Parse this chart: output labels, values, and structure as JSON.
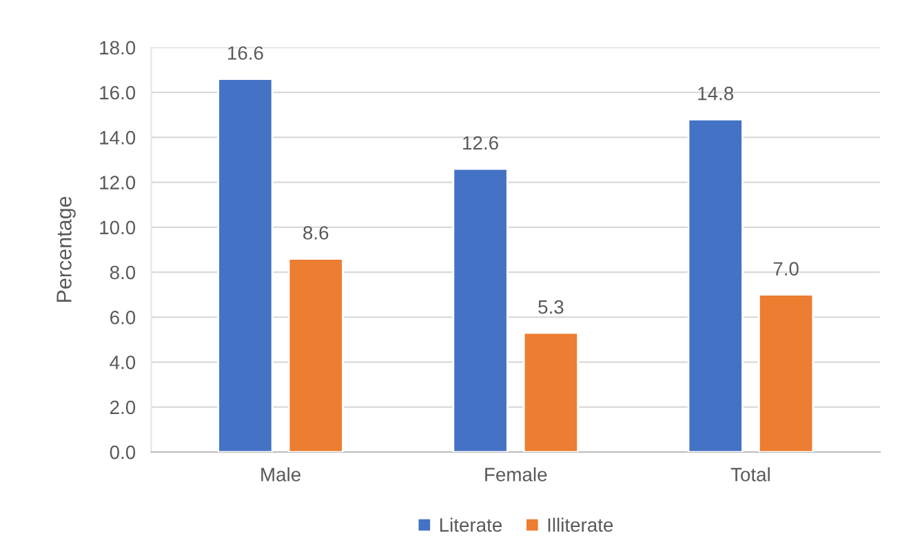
{
  "chart_data": {
    "type": "bar",
    "ylabel": "Percentage",
    "categories": [
      "Male",
      "Female",
      "Total"
    ],
    "series": [
      {
        "name": "Literate",
        "color": "#4472c4",
        "values": [
          16.6,
          12.6,
          14.8
        ],
        "value_labels": [
          "16.6",
          "12.6",
          "14.8"
        ]
      },
      {
        "name": "Illiterate",
        "color": "#ed7d31",
        "values": [
          8.6,
          5.3,
          7.0
        ],
        "value_labels": [
          "8.6",
          "5.3",
          "7.0"
        ]
      }
    ],
    "ylim": [
      0,
      18
    ],
    "yticks": [
      {
        "value": 0,
        "label": "0.0"
      },
      {
        "value": 2,
        "label": "2.0"
      },
      {
        "value": 4,
        "label": "4.0"
      },
      {
        "value": 6,
        "label": "6.0"
      },
      {
        "value": 8,
        "label": "8.0"
      },
      {
        "value": 10,
        "label": "10.0"
      },
      {
        "value": 12,
        "label": "12.0"
      },
      {
        "value": 14,
        "label": "14.0"
      },
      {
        "value": 16,
        "label": "16.0"
      },
      {
        "value": 18,
        "label": "18.0"
      }
    ],
    "grid": "y",
    "legend": "bottom"
  }
}
